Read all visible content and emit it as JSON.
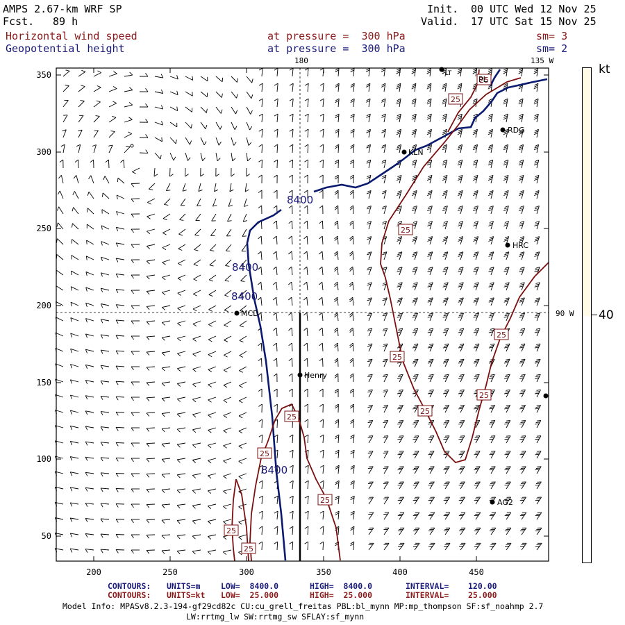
{
  "header": {
    "model_title": "AMPS 2.67-km WRF SP",
    "fcst_label": "Fcst.",
    "fcst_hours": "89 h",
    "init_label": "Init.",
    "init_time": "00 UTC Wed 12 Nov 25",
    "valid_label": "Valid.",
    "valid_time": "17 UTC Sat 15 Nov 25",
    "field1_name": "Horizontal wind speed",
    "field1_level": "at pressure =  300 hPa",
    "field1_smooth": "sm= 3",
    "field2_name": "Geopotential height",
    "field2_level": "at pressure =  300 hPa",
    "field2_smooth": "sm= 2"
  },
  "axes": {
    "x_ticks": [
      "200",
      "250",
      "300",
      "350",
      "400",
      "450"
    ],
    "y_ticks": [
      "350",
      "300",
      "250",
      "200",
      "150",
      "100",
      "50"
    ],
    "lon_top_180": "180",
    "lon_top_135w": "135 W",
    "lon_right_90w": "90 W"
  },
  "stations": [
    {
      "label": "KLN"
    },
    {
      "label": "RDG"
    },
    {
      "label": "HRC"
    },
    {
      "label": "MCD"
    },
    {
      "label": "Henry"
    },
    {
      "label": "AG2"
    },
    {
      "label": "PL"
    },
    {
      "label": "LT"
    }
  ],
  "contours": {
    "height_label": "8400",
    "wind_label": "25"
  },
  "colorbar": {
    "unit": "kt",
    "value": "40"
  },
  "footer": {
    "line1": {
      "contours": "CONTOURS:",
      "units": "UNITS=m",
      "low": "LOW=  8400.0",
      "high": "HIGH=  8400.0",
      "interval": "INTERVAL=    120.00"
    },
    "line2": {
      "contours": "CONTOURS:",
      "units": "UNITS=kt",
      "low": "LOW=  25.000",
      "high": "HIGH=  25.000",
      "interval": "INTERVAL=    25.000"
    },
    "model_info_1": "Model Info: MPASv8.2.3-194-gf29cd82c CU:cu_grell_freitas PBL:bl_mynn MP:mp_thompson SF:sf_noahmp 2.7",
    "model_info_2": "LW:rrtmg_lw SW:rrtmg_sw SFLAY:sf_mynn"
  },
  "colors": {
    "frame": "#000000",
    "height_contour": "#0a1a6e",
    "wind_contour": "#7a1010",
    "barb": "#000000",
    "colorbar_fill": "#fffbe6"
  }
}
